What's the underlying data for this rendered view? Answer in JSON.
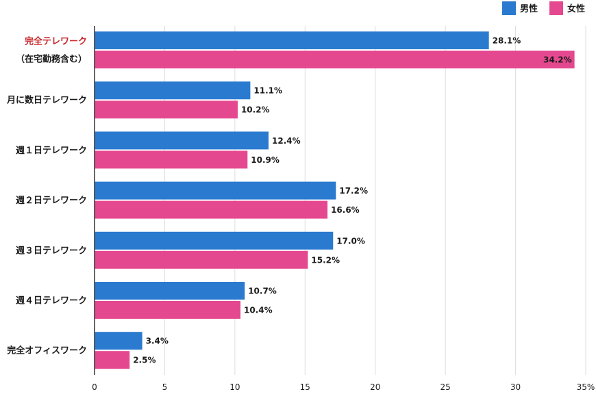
{
  "chart_data": {
    "type": "bar",
    "orientation": "horizontal",
    "categories": [
      [
        "完全テレワーク",
        "（在宅勤務含む）"
      ],
      [
        "月に数日テレワーク"
      ],
      [
        "週１日テレワーク"
      ],
      [
        "週２日テレワーク"
      ],
      [
        "週３日テレワーク"
      ],
      [
        "週４日テレワーク"
      ],
      [
        "完全オフィスワーク"
      ]
    ],
    "highlight_category": 0,
    "series": [
      {
        "name": "男性",
        "color": "#2a7acf",
        "values": [
          28.1,
          11.1,
          12.4,
          17.2,
          17.0,
          10.7,
          3.4
        ]
      },
      {
        "name": "女性",
        "color": "#e4488f",
        "values": [
          34.2,
          10.2,
          10.9,
          16.6,
          15.2,
          10.4,
          2.5
        ]
      }
    ],
    "value_labels": [
      [
        "28.1%",
        "11.1%",
        "12.4%",
        "17.2%",
        "17.0%",
        "10.7%",
        "3.4%"
      ],
      [
        "34.2%",
        "10.2%",
        "10.9%",
        "16.6%",
        "15.2%",
        "10.4%",
        "2.5%"
      ]
    ],
    "xlim": [
      0,
      35
    ],
    "xticks": [
      0,
      5,
      10,
      15,
      20,
      25,
      30,
      35
    ],
    "xtick_labels": [
      "0",
      "5",
      "10",
      "15",
      "20",
      "25",
      "30",
      "35%"
    ],
    "grid": true,
    "legend_position": "top-right",
    "title": "",
    "xlabel": "",
    "ylabel": ""
  },
  "colors": {
    "highlight_label": "#c8262b",
    "grid": "#dddddd",
    "axis": "#333333"
  }
}
